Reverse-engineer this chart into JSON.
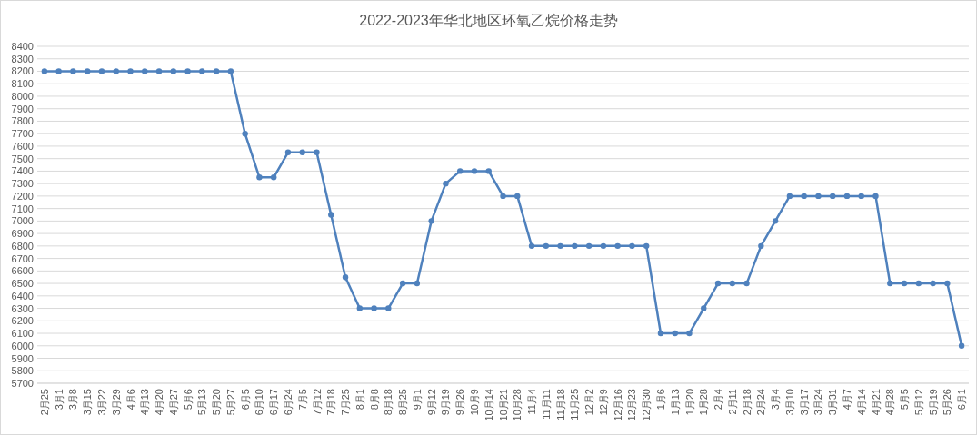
{
  "chart_data": {
    "type": "line",
    "title": "2022-2023年华北地区环氧乙烷价格走势",
    "categories": [
      "2月25",
      "3月1",
      "3月8",
      "3月15",
      "3月22",
      "3月29",
      "4月6",
      "4月13",
      "4月20",
      "4月27",
      "5月6",
      "5月13",
      "5月20",
      "5月27",
      "6月5",
      "6月10",
      "6月17",
      "6月24",
      "7月5",
      "7月12",
      "7月18",
      "7月25",
      "8月1",
      "8月8",
      "8月18",
      "8月25",
      "9月1",
      "9月12",
      "9月19",
      "9月26",
      "10月9",
      "10月14",
      "10月21",
      "10月28",
      "11月4",
      "11月11",
      "11月18",
      "11月25",
      "12月2",
      "12月9",
      "12月16",
      "12月23",
      "12月30",
      "1月6",
      "1月13",
      "1月20",
      "1月28",
      "2月4",
      "2月11",
      "2月18",
      "2月24",
      "3月4",
      "3月10",
      "3月17",
      "3月24",
      "3月31",
      "4月7",
      "4月14",
      "4月21",
      "4月28",
      "5月5",
      "5月12",
      "5月19",
      "5月26",
      "6月1"
    ],
    "series": [
      {
        "color": "#4f81bd",
        "values": [
          8200,
          8200,
          8200,
          8200,
          8200,
          8200,
          8200,
          8200,
          8200,
          8200,
          8200,
          8200,
          8200,
          8200,
          7700,
          7350,
          7350,
          7550,
          7550,
          7550,
          7050,
          6550,
          6300,
          6300,
          6300,
          6500,
          6500,
          7000,
          7300,
          7400,
          7400,
          7400,
          7200,
          7200,
          6800,
          6800,
          6800,
          6800,
          6800,
          6800,
          6800,
          6800,
          6800,
          6100,
          6100,
          6100,
          6300,
          6500,
          6500,
          6500,
          6800,
          7000,
          7200,
          7200,
          7200,
          7200,
          7200,
          7200,
          7200,
          6500,
          6500,
          6500,
          6500,
          6500,
          6000
        ]
      }
    ],
    "ylim": [
      5700,
      8400
    ],
    "yticks": [
      5700,
      5800,
      5900,
      6000,
      6100,
      6200,
      6300,
      6400,
      6500,
      6600,
      6700,
      6800,
      6900,
      7000,
      7100,
      7200,
      7300,
      7400,
      7500,
      7600,
      7700,
      7800,
      7900,
      8000,
      8100,
      8200,
      8300,
      8400
    ],
    "grid": "y",
    "marker": "circle",
    "line_style": "solid"
  }
}
